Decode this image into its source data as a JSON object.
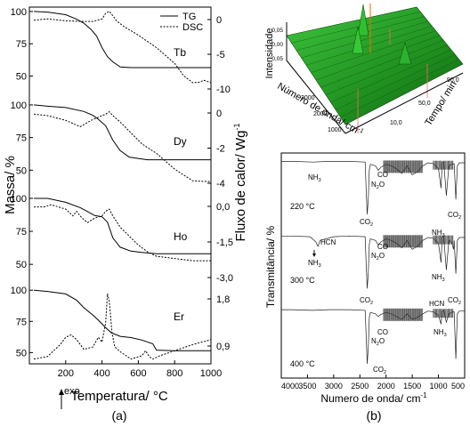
{
  "chart_data": [
    {
      "type": "line",
      "panel_label": "(a)",
      "xlabel": "Temperatura/ °C",
      "ylabel_left": "Massa/ %",
      "ylabel_right": "Fluxo de calor/ Wg",
      "ylabel_right_sup": "-1",
      "xlim": [
        0,
        1000
      ],
      "xticks": [
        "200",
        "400",
        "600",
        "800",
        "1000"
      ],
      "legend": {
        "tg": "TG",
        "dsc": "DSC",
        "placement": "top-right"
      },
      "exo_label": "exo",
      "subplots": [
        {
          "name": "Tb",
          "left_ticks": [
            "100",
            "75",
            "50"
          ],
          "right_ticks": [
            "0",
            "-5",
            "-10"
          ],
          "left_lim": [
            40,
            102
          ],
          "right_lim": [
            -10.6,
            2.2
          ],
          "tg": {
            "x": [
              25,
              100,
              200,
              260,
              300,
              340,
              370,
              400,
              430,
              460,
              500,
              560,
              650,
              800,
              1000
            ],
            "y": [
              100,
              99.5,
              97.5,
              94,
              91,
              86,
              81,
              72,
              65,
              61,
              57,
              56.5,
              56.5,
              56.5,
              56.5
            ]
          },
          "dsc": {
            "x": [
              25,
              100,
              200,
              300,
              350,
              400,
              420,
              440,
              460,
              480,
              520,
              600,
              700,
              800,
              850,
              900,
              940,
              960,
              1000
            ],
            "y": [
              0.4,
              0.6,
              0.3,
              0.2,
              0.2,
              0.6,
              1.5,
              1.8,
              1.1,
              0.3,
              -0.6,
              -2,
              -4,
              -6.5,
              -8.5,
              -9.6,
              -9.5,
              -9.2,
              -9.6
            ]
          }
        },
        {
          "name": "Dy",
          "left_ticks": [
            "100",
            "75",
            "50"
          ],
          "right_ticks": [
            "0",
            "-2",
            "-4"
          ],
          "left_lim": [
            40,
            102
          ],
          "right_lim": [
            -4.2,
            0.95
          ],
          "tg": {
            "x": [
              25,
              100,
              200,
              300,
              350,
              380,
              420,
              460,
              500,
              550,
              600,
              650,
              800,
              1000
            ],
            "y": [
              100,
              99,
              98,
              95,
              92,
              89,
              84,
              73,
              65,
              60,
              59,
              58,
              58,
              58
            ]
          },
          "dsc": {
            "x": [
              25,
              100,
              200,
              280,
              340,
              380,
              420,
              440,
              460,
              500,
              560,
              620,
              700,
              800,
              900,
              1000
            ],
            "y": [
              0.2,
              0.1,
              -0.2,
              -0.6,
              -0.2,
              0.0,
              0.2,
              0.35,
              0.1,
              -0.3,
              -1,
              -1.7,
              -2.3,
              -3.3,
              -4.05,
              -4.1
            ]
          }
        },
        {
          "name": "Ho",
          "left_ticks": [
            "100",
            "75",
            "50"
          ],
          "right_ticks": [
            "0,0",
            "-1,5",
            "-3,0"
          ],
          "left_lim": [
            40,
            102
          ],
          "right_lim": [
            -3.05,
            0.6
          ],
          "tg": {
            "x": [
              25,
              100,
              200,
              280,
              320,
              360,
              400,
              430,
              460,
              500,
              560,
              620,
              700,
              850,
              1000
            ],
            "y": [
              100,
              100,
              97,
              93,
              90,
              87,
              86,
              82,
              70,
              63,
              60,
              59,
              58,
              58,
              58
            ]
          },
          "dsc": {
            "x": [
              25,
              80,
              120,
              160,
              200,
              240,
              260,
              290,
              320,
              360,
              400,
              420,
              440,
              460,
              500,
              600,
              650,
              700,
              800,
              900,
              1000
            ],
            "y": [
              0.1,
              0.1,
              0.2,
              0.1,
              0.0,
              -0.3,
              -0.1,
              -0.4,
              -0.6,
              -0.4,
              -0.3,
              -0.1,
              0.0,
              -0.3,
              -0.8,
              -1.6,
              -1.9,
              -2.1,
              -2.2,
              -2.3,
              -2.3
            ]
          }
        },
        {
          "name": "Er",
          "left_ticks": [
            "100",
            "75",
            "50"
          ],
          "right_ticks": [
            "1,8",
            "0,9"
          ],
          "left_lim": [
            41,
            103
          ],
          "right_lim": [
            0.45,
            2.05
          ],
          "tg": {
            "x": [
              25,
              100,
              200,
              260,
              300,
              350,
              380,
              400,
              420,
              450,
              500,
              560,
              620,
              680,
              700,
              800,
              1000
            ],
            "y": [
              100,
              99,
              97,
              92,
              86,
              80,
              76,
              73,
              70,
              66,
              63,
              62,
              60,
              57,
              52,
              51.5,
              51.5
            ]
          },
          "dsc": {
            "x": [
              25,
              100,
              170,
              200,
              230,
              260,
              300,
              350,
              380,
              400,
              420,
              430,
              440,
              455,
              470,
              500,
              560,
              620,
              640,
              660,
              680,
              720,
              800,
              900,
              1000
            ],
            "y": [
              0.55,
              0.6,
              0.85,
              1.0,
              1.05,
              0.95,
              0.75,
              0.8,
              1.0,
              0.9,
              1.3,
              1.9,
              1.75,
              1.1,
              0.8,
              0.7,
              0.55,
              0.62,
              0.72,
              0.6,
              0.55,
              0.62,
              0.72,
              0.85,
              0.95
            ]
          }
        }
      ]
    },
    {
      "type": "line",
      "panel_label": "(b)",
      "xlabel": "Numero de onda/ cm",
      "xlabel_sup": "-1",
      "ylabel": "Transmitância/ %",
      "xlim": [
        4000,
        500
      ],
      "xticks": [
        "4000",
        "3500",
        "3000",
        "2500",
        "2000",
        "1500",
        "1000",
        "500"
      ],
      "series": [
        {
          "name": "220 °C",
          "x": [
            4000,
            3800,
            3400,
            3100,
            2700,
            2400,
            2380,
            2360,
            2340,
            2320,
            2300,
            2200,
            2150,
            2100,
            2000,
            1900,
            1800,
            1700,
            1600,
            1500,
            1400,
            1300,
            1200,
            1100,
            1000,
            950,
            930,
            900,
            850,
            800,
            750,
            700,
            668,
            640,
            600,
            500
          ],
          "y": [
            0.96,
            0.96,
            0.95,
            0.96,
            0.96,
            0.95,
            0.6,
            0.25,
            0.45,
            0.85,
            0.92,
            0.9,
            0.84,
            0.88,
            0.92,
            0.9,
            0.86,
            0.8,
            0.9,
            0.78,
            0.82,
            0.9,
            0.94,
            0.93,
            0.86,
            0.6,
            0.94,
            0.95,
            0.5,
            0.9,
            0.92,
            0.93,
            0.45,
            0.9,
            0.94,
            0.94
          ]
        },
        {
          "name": "300 °C",
          "x": [
            4000,
            3800,
            3450,
            3340,
            3300,
            3260,
            3000,
            2700,
            2400,
            2380,
            2360,
            2340,
            2320,
            2300,
            2200,
            2150,
            2100,
            2000,
            1900,
            1800,
            1700,
            1600,
            1500,
            1400,
            1300,
            1200,
            1100,
            1000,
            950,
            930,
            900,
            850,
            800,
            750,
            712,
            700,
            668,
            640,
            600,
            500
          ],
          "y": [
            0.96,
            0.96,
            0.95,
            0.88,
            0.82,
            0.9,
            0.95,
            0.96,
            0.95,
            0.6,
            0.25,
            0.45,
            0.85,
            0.92,
            0.9,
            0.84,
            0.88,
            0.92,
            0.9,
            0.86,
            0.8,
            0.9,
            0.78,
            0.82,
            0.9,
            0.94,
            0.93,
            0.86,
            0.6,
            0.94,
            0.95,
            0.5,
            0.9,
            0.88,
            0.78,
            0.9,
            0.45,
            0.9,
            0.94,
            0.94
          ]
        },
        {
          "name": "400 °C",
          "x": [
            4000,
            3800,
            3400,
            3100,
            2700,
            2400,
            2380,
            2360,
            2340,
            2320,
            2300,
            2200,
            2150,
            2100,
            2000,
            1900,
            1800,
            1700,
            1600,
            1500,
            1400,
            1300,
            1200,
            1100,
            1000,
            950,
            930,
            900,
            850,
            800,
            750,
            700,
            668,
            640,
            600,
            500
          ],
          "y": [
            0.96,
            0.96,
            0.95,
            0.96,
            0.96,
            0.95,
            0.6,
            0.18,
            0.4,
            0.85,
            0.92,
            0.9,
            0.86,
            0.89,
            0.92,
            0.9,
            0.86,
            0.82,
            0.9,
            0.82,
            0.85,
            0.9,
            0.94,
            0.93,
            0.88,
            0.75,
            0.94,
            0.95,
            0.78,
            0.9,
            0.92,
            0.93,
            0.25,
            0.9,
            0.94,
            0.94
          ]
        }
      ],
      "annotations": [
        "NH3",
        "N2O",
        "CO",
        "CO2",
        "HCN"
      ]
    },
    {
      "type": "area",
      "subtype": "3d-surface",
      "zlabel": "Intensidade",
      "xlabel": "Número de onda/ cm",
      "xlabel_sup": "-1",
      "ylabel": "Tempo/ min",
      "zticks": [
        "0,05",
        "0,00",
        "0,05"
      ],
      "xticks": [
        "3000",
        "2000",
        "1000"
      ],
      "yticks": [
        "10,0",
        "50,0",
        "90,0"
      ]
    }
  ]
}
